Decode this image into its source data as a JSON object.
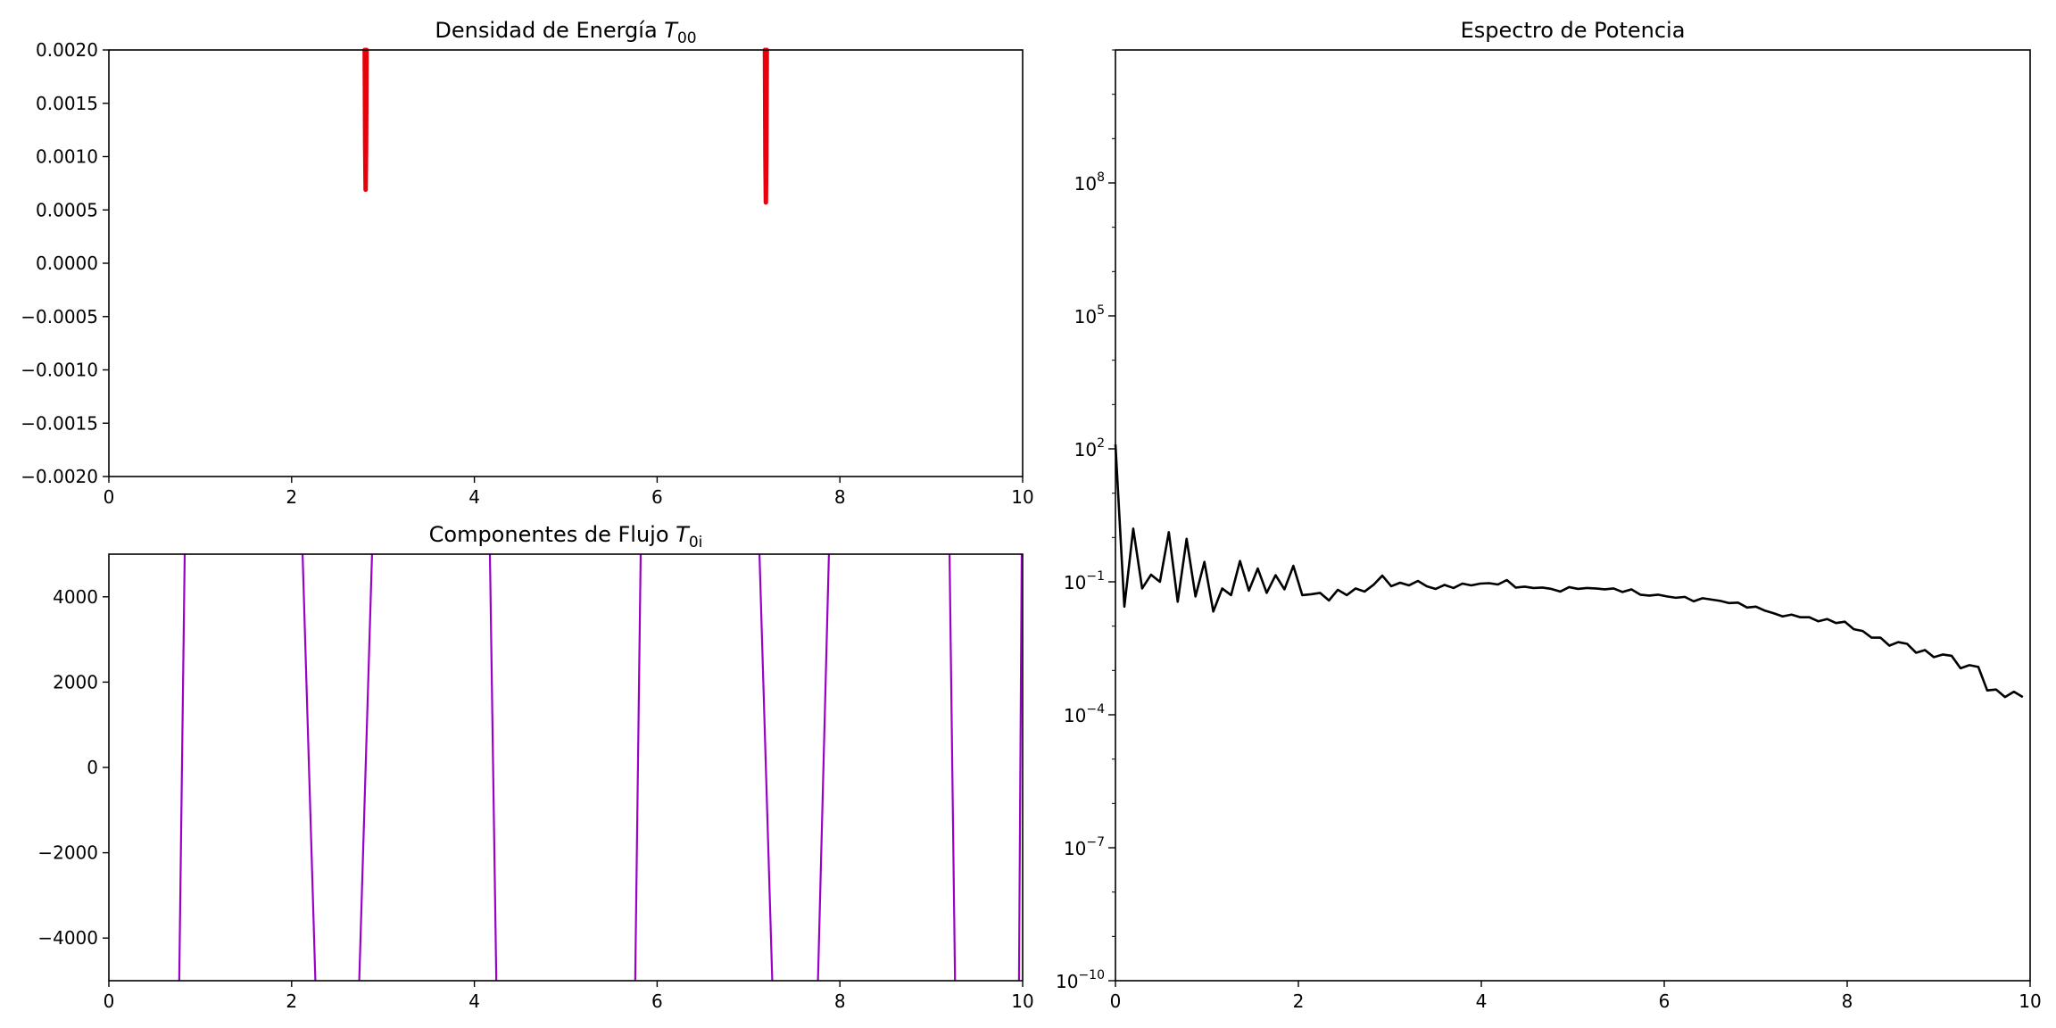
{
  "chart_data": [
    {
      "type": "line",
      "title": "Densidad de Energía",
      "title_symbol": "T",
      "title_subscript": "00",
      "xlim": [
        0,
        10
      ],
      "ylim": [
        -0.002,
        0.002
      ],
      "xticks": [
        0,
        2,
        4,
        6,
        8,
        10
      ],
      "xtick_labels": [
        "0",
        "2",
        "4",
        "6",
        "8",
        "10"
      ],
      "yticks": [
        0.002,
        0.0015,
        0.001,
        0.0005,
        0.0,
        -0.0005,
        -0.001,
        -0.0015,
        -0.002
      ],
      "ytick_labels": [
        "0.0020",
        "0.0015",
        "0.0010",
        "0.0005",
        "0.0000",
        "−0.0005",
        "−0.0010",
        "−0.0015",
        "−0.0020"
      ],
      "grid": false,
      "color": "#e8000b",
      "series": [
        {
          "x": [
            2.8,
            2.805,
            2.81,
            2.815,
            2.82
          ],
          "y": [
            0.002,
            0.0011,
            0.00069,
            0.0011,
            0.002
          ]
        },
        {
          "x": [
            7.18,
            7.185,
            7.19,
            7.195,
            7.2
          ],
          "y": [
            0.002,
            0.001,
            0.00057,
            0.001,
            0.002
          ]
        }
      ]
    },
    {
      "type": "line",
      "title": "Componentes de Flujo",
      "title_symbol": "T",
      "title_subscript": "0i",
      "xlim": [
        0,
        10
      ],
      "ylim": [
        -5000,
        5000
      ],
      "xticks": [
        0,
        2,
        4,
        6,
        8,
        10
      ],
      "xtick_labels": [
        "0",
        "2",
        "4",
        "6",
        "8",
        "10"
      ],
      "yticks": [
        4000,
        2000,
        0,
        -2000,
        -4000
      ],
      "ytick_labels": [
        "4000",
        "2000",
        "0",
        "−2000",
        "−4000"
      ],
      "grid": false,
      "color": "#9b00c8",
      "series": [
        {
          "x": [
            0.77,
            0.83
          ],
          "y": [
            -5000,
            5000
          ]
        },
        {
          "x": [
            2.12,
            2.26
          ],
          "y": [
            5000,
            -5000
          ]
        },
        {
          "x": [
            2.74,
            2.88
          ],
          "y": [
            -5000,
            5000
          ]
        },
        {
          "x": [
            4.17,
            4.24
          ],
          "y": [
            5000,
            -5000
          ]
        },
        {
          "x": [
            5.76,
            5.82
          ],
          "y": [
            -5000,
            5000
          ]
        },
        {
          "x": [
            7.12,
            7.26
          ],
          "y": [
            5000,
            -5000
          ]
        },
        {
          "x": [
            7.76,
            7.88
          ],
          "y": [
            -5000,
            5000
          ]
        },
        {
          "x": [
            9.2,
            9.26
          ],
          "y": [
            5000,
            -5000
          ]
        },
        {
          "x": [
            9.96,
            9.99
          ],
          "y": [
            -5000,
            5000
          ]
        }
      ]
    },
    {
      "type": "line",
      "title": "Espectro de Potencia",
      "yscale": "log",
      "xlim": [
        0,
        10
      ],
      "ylim_log10": [
        -10,
        11
      ],
      "xticks": [
        0,
        2,
        4,
        6,
        8,
        10
      ],
      "xtick_labels": [
        "0",
        "2",
        "4",
        "6",
        "8",
        "10"
      ],
      "ytick_exponents": [
        8,
        5,
        2,
        -1,
        -4,
        -7,
        -10
      ],
      "ytick_base": "10",
      "grid": false,
      "color": "#000000",
      "log10_values": [
        2.1,
        -1.56,
        0.2,
        -1.15,
        -0.84,
        -1.0,
        0.12,
        -1.45,
        -0.03,
        -1.33,
        -0.55,
        -1.67,
        -1.15,
        -1.3,
        -0.53,
        -1.2,
        -0.7,
        -1.25,
        -0.85,
        -1.17,
        -0.64,
        -1.3,
        -1.28,
        -1.25,
        -1.42,
        -1.18,
        -1.3,
        -1.15,
        -1.22,
        -1.07,
        -0.86,
        -1.1,
        -1.02,
        -1.08,
        -0.98,
        -1.1,
        -1.16,
        -1.07,
        -1.14,
        -1.04,
        -1.08,
        -1.04,
        -1.03,
        -1.06,
        -0.96,
        -1.13,
        -1.11,
        -1.14,
        -1.13,
        -1.16,
        -1.22,
        -1.12,
        -1.16,
        -1.14,
        -1.15,
        -1.17,
        -1.15,
        -1.23,
        -1.17,
        -1.29,
        -1.31,
        -1.29,
        -1.33,
        -1.36,
        -1.34,
        -1.44,
        -1.37,
        -1.4,
        -1.43,
        -1.48,
        -1.47,
        -1.58,
        -1.56,
        -1.65,
        -1.71,
        -1.78,
        -1.74,
        -1.8,
        -1.8,
        -1.89,
        -1.84,
        -1.93,
        -1.9,
        -2.07,
        -2.11,
        -2.26,
        -2.26,
        -2.44,
        -2.36,
        -2.4,
        -2.6,
        -2.54,
        -2.7,
        -2.64,
        -2.67,
        -2.95,
        -2.88,
        -2.92,
        -3.45,
        -3.43,
        -3.6,
        -3.48,
        -3.6
      ]
    }
  ]
}
